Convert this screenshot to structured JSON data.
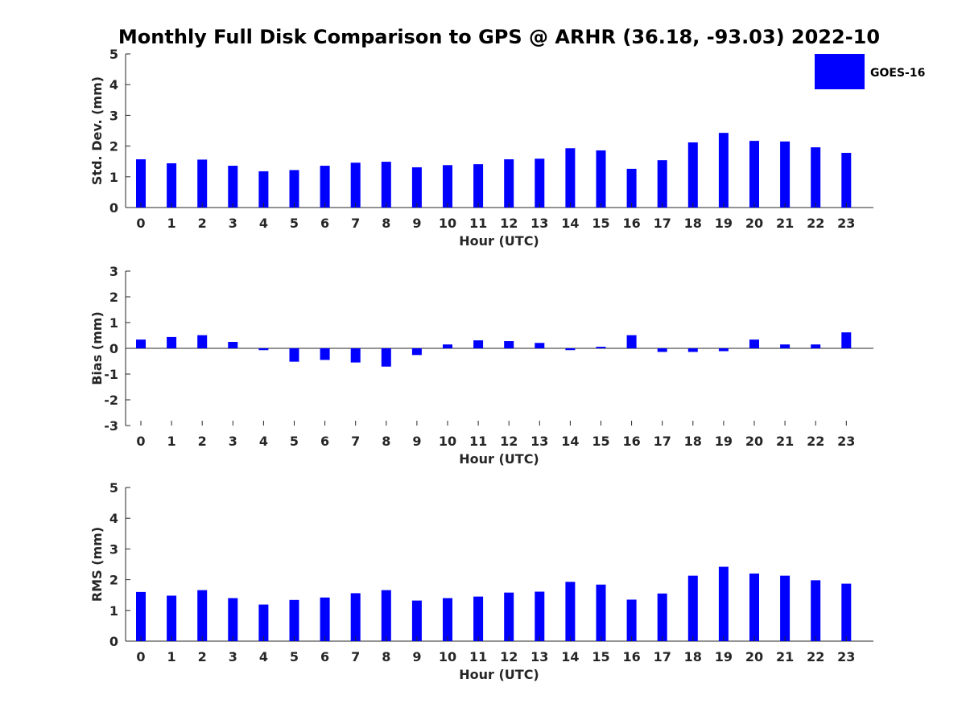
{
  "title": "Monthly Full Disk Comparison to GPS @ ARHR (36.18, -93.03) 2022-10",
  "legend": {
    "label": "GOES-16",
    "color": "#0000ff",
    "placement": "top-right"
  },
  "chart_data": [
    {
      "type": "bar",
      "ylabel": "Std. Dev. (mm)",
      "xlabel": "Hour (UTC)",
      "ylim": [
        0,
        5
      ],
      "yticks": [
        "0",
        "1",
        "2",
        "3",
        "4",
        "5"
      ],
      "categories": [
        "0",
        "1",
        "2",
        "3",
        "4",
        "5",
        "6",
        "7",
        "8",
        "9",
        "10",
        "11",
        "12",
        "13",
        "14",
        "15",
        "16",
        "17",
        "18",
        "19",
        "20",
        "21",
        "22",
        "23"
      ],
      "series": [
        {
          "name": "GOES-16",
          "color": "#0000ff",
          "values": [
            1.57,
            1.44,
            1.56,
            1.36,
            1.18,
            1.22,
            1.36,
            1.46,
            1.49,
            1.31,
            1.38,
            1.41,
            1.57,
            1.59,
            1.93,
            1.86,
            1.26,
            1.54,
            2.12,
            2.43,
            2.17,
            2.15,
            1.96,
            1.78
          ]
        }
      ],
      "grid": false
    },
    {
      "type": "bar",
      "ylabel": "Bias (mm)",
      "xlabel": "Hour (UTC)",
      "ylim": [
        -3,
        3
      ],
      "yticks": [
        "-3",
        "-2",
        "-1",
        "0",
        "1",
        "2",
        "3"
      ],
      "categories": [
        "0",
        "1",
        "2",
        "3",
        "4",
        "5",
        "6",
        "7",
        "8",
        "9",
        "10",
        "11",
        "12",
        "13",
        "14",
        "15",
        "16",
        "17",
        "18",
        "19",
        "20",
        "21",
        "22",
        "23"
      ],
      "series": [
        {
          "name": "GOES-16",
          "color": "#0000ff",
          "values": [
            0.34,
            0.44,
            0.51,
            0.25,
            -0.07,
            -0.52,
            -0.45,
            -0.55,
            -0.71,
            -0.26,
            0.15,
            0.31,
            0.28,
            0.21,
            -0.07,
            0.06,
            0.51,
            -0.14,
            -0.14,
            -0.11,
            0.34,
            0.15,
            0.15,
            0.62
          ]
        }
      ],
      "grid": false
    },
    {
      "type": "bar",
      "ylabel": "RMS (mm)",
      "xlabel": "Hour (UTC)",
      "ylim": [
        0,
        5
      ],
      "yticks": [
        "0",
        "1",
        "2",
        "3",
        "4",
        "5"
      ],
      "categories": [
        "0",
        "1",
        "2",
        "3",
        "4",
        "5",
        "6",
        "7",
        "8",
        "9",
        "10",
        "11",
        "12",
        "13",
        "14",
        "15",
        "16",
        "17",
        "18",
        "19",
        "20",
        "21",
        "22",
        "23"
      ],
      "series": [
        {
          "name": "GOES-16",
          "color": "#0000ff",
          "values": [
            1.6,
            1.48,
            1.66,
            1.4,
            1.19,
            1.34,
            1.42,
            1.56,
            1.66,
            1.32,
            1.4,
            1.45,
            1.58,
            1.61,
            1.93,
            1.84,
            1.35,
            1.55,
            2.13,
            2.42,
            2.2,
            2.13,
            1.98,
            1.87
          ]
        }
      ],
      "grid": false
    }
  ]
}
